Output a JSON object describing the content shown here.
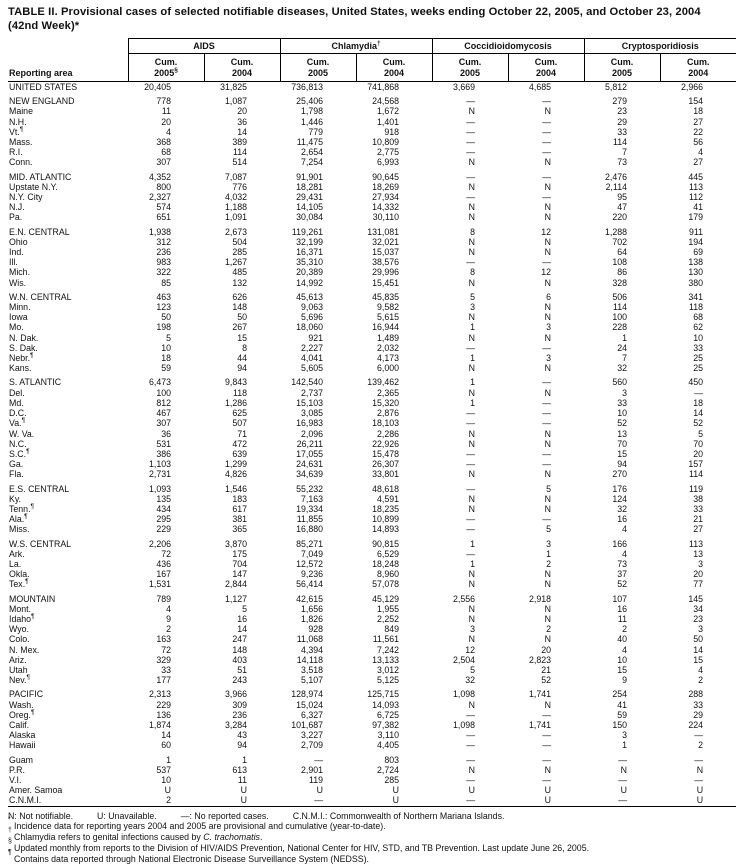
{
  "page": {
    "title_line1": "TABLE II. Provisional cases of selected notifiable diseases, United States, weeks ending October 22, 2005, and October 23, 2004",
    "title_line2": "(42nd Week)*"
  },
  "table": {
    "area_header": "Reporting area",
    "groups": [
      {
        "label": "AIDS",
        "sup": "",
        "sub": [
          {
            "line1": "Cum.",
            "line2": "2005",
            "sup": "§"
          },
          {
            "line1": "Cum.",
            "line2": "2004",
            "sup": ""
          }
        ]
      },
      {
        "label": "Chlamydia",
        "sup": "†",
        "sub": [
          {
            "line1": "Cum.",
            "line2": "2005",
            "sup": ""
          },
          {
            "line1": "Cum.",
            "line2": "2004",
            "sup": ""
          }
        ]
      },
      {
        "label": "Coccidioidomycosis",
        "sup": "",
        "sub": [
          {
            "line1": "Cum.",
            "line2": "2005",
            "sup": ""
          },
          {
            "line1": "Cum.",
            "line2": "2004",
            "sup": ""
          }
        ]
      },
      {
        "label": "Cryptosporidiosis",
        "sup": "",
        "sub": [
          {
            "line1": "Cum.",
            "line2": "2005",
            "sup": ""
          },
          {
            "line1": "Cum.",
            "line2": "2004",
            "sup": ""
          }
        ]
      }
    ],
    "rows": [
      {
        "area": "UNITED STATES",
        "sup": "",
        "gap": false,
        "values": [
          "20,405",
          "31,825",
          "736,813",
          "741,868",
          "3,669",
          "4,685",
          "5,812",
          "2,966"
        ]
      },
      {
        "area": "NEW ENGLAND",
        "sup": "",
        "gap": true,
        "values": [
          "778",
          "1,087",
          "25,406",
          "24,568",
          "—",
          "—",
          "279",
          "154"
        ]
      },
      {
        "area": "Maine",
        "sup": "",
        "gap": false,
        "values": [
          "11",
          "20",
          "1,798",
          "1,672",
          "N",
          "N",
          "23",
          "18"
        ]
      },
      {
        "area": "N.H.",
        "sup": "",
        "gap": false,
        "values": [
          "20",
          "36",
          "1,446",
          "1,401",
          "—",
          "—",
          "29",
          "27"
        ]
      },
      {
        "area": "Vt.",
        "sup": "¶",
        "gap": false,
        "values": [
          "4",
          "14",
          "779",
          "918",
          "—",
          "—",
          "33",
          "22"
        ]
      },
      {
        "area": "Mass.",
        "sup": "",
        "gap": false,
        "values": [
          "368",
          "389",
          "11,475",
          "10,809",
          "—",
          "—",
          "114",
          "56"
        ]
      },
      {
        "area": "R.I.",
        "sup": "",
        "gap": false,
        "values": [
          "68",
          "114",
          "2,654",
          "2,775",
          "—",
          "—",
          "7",
          "4"
        ]
      },
      {
        "area": "Conn.",
        "sup": "",
        "gap": false,
        "values": [
          "307",
          "514",
          "7,254",
          "6,993",
          "N",
          "N",
          "73",
          "27"
        ]
      },
      {
        "area": "MID. ATLANTIC",
        "sup": "",
        "gap": true,
        "values": [
          "4,352",
          "7,087",
          "91,901",
          "90,645",
          "—",
          "—",
          "2,476",
          "445"
        ]
      },
      {
        "area": "Upstate N.Y.",
        "sup": "",
        "gap": false,
        "values": [
          "800",
          "776",
          "18,281",
          "18,269",
          "N",
          "N",
          "2,114",
          "113"
        ]
      },
      {
        "area": "N.Y. City",
        "sup": "",
        "gap": false,
        "values": [
          "2,327",
          "4,032",
          "29,431",
          "27,934",
          "—",
          "—",
          "95",
          "112"
        ]
      },
      {
        "area": "N.J.",
        "sup": "",
        "gap": false,
        "values": [
          "574",
          "1,188",
          "14,105",
          "14,332",
          "N",
          "N",
          "47",
          "41"
        ]
      },
      {
        "area": "Pa.",
        "sup": "",
        "gap": false,
        "values": [
          "651",
          "1,091",
          "30,084",
          "30,110",
          "N",
          "N",
          "220",
          "179"
        ]
      },
      {
        "area": "E.N. CENTRAL",
        "sup": "",
        "gap": true,
        "values": [
          "1,938",
          "2,673",
          "119,261",
          "131,081",
          "8",
          "12",
          "1,288",
          "911"
        ]
      },
      {
        "area": "Ohio",
        "sup": "",
        "gap": false,
        "values": [
          "312",
          "504",
          "32,199",
          "32,021",
          "N",
          "N",
          "702",
          "194"
        ]
      },
      {
        "area": "Ind.",
        "sup": "",
        "gap": false,
        "values": [
          "236",
          "285",
          "16,371",
          "15,037",
          "N",
          "N",
          "64",
          "69"
        ]
      },
      {
        "area": "Ill.",
        "sup": "",
        "gap": false,
        "values": [
          "983",
          "1,267",
          "35,310",
          "38,576",
          "—",
          "—",
          "108",
          "138"
        ]
      },
      {
        "area": "Mich.",
        "sup": "",
        "gap": false,
        "values": [
          "322",
          "485",
          "20,389",
          "29,996",
          "8",
          "12",
          "86",
          "130"
        ]
      },
      {
        "area": "Wis.",
        "sup": "",
        "gap": false,
        "values": [
          "85",
          "132",
          "14,992",
          "15,451",
          "N",
          "N",
          "328",
          "380"
        ]
      },
      {
        "area": "W.N. CENTRAL",
        "sup": "",
        "gap": true,
        "values": [
          "463",
          "626",
          "45,613",
          "45,835",
          "5",
          "6",
          "506",
          "341"
        ]
      },
      {
        "area": "Minn.",
        "sup": "",
        "gap": false,
        "values": [
          "123",
          "148",
          "9,063",
          "9,582",
          "3",
          "N",
          "114",
          "118"
        ]
      },
      {
        "area": "Iowa",
        "sup": "",
        "gap": false,
        "values": [
          "50",
          "50",
          "5,696",
          "5,615",
          "N",
          "N",
          "100",
          "68"
        ]
      },
      {
        "area": "Mo.",
        "sup": "",
        "gap": false,
        "values": [
          "198",
          "267",
          "18,060",
          "16,944",
          "1",
          "3",
          "228",
          "62"
        ]
      },
      {
        "area": "N. Dak.",
        "sup": "",
        "gap": false,
        "values": [
          "5",
          "15",
          "921",
          "1,489",
          "N",
          "N",
          "1",
          "10"
        ]
      },
      {
        "area": "S. Dak.",
        "sup": "",
        "gap": false,
        "values": [
          "10",
          "8",
          "2,227",
          "2,032",
          "—",
          "—",
          "24",
          "33"
        ]
      },
      {
        "area": "Nebr.",
        "sup": "¶",
        "gap": false,
        "values": [
          "18",
          "44",
          "4,041",
          "4,173",
          "1",
          "3",
          "7",
          "25"
        ]
      },
      {
        "area": "Kans.",
        "sup": "",
        "gap": false,
        "values": [
          "59",
          "94",
          "5,605",
          "6,000",
          "N",
          "N",
          "32",
          "25"
        ]
      },
      {
        "area": "S. ATLANTIC",
        "sup": "",
        "gap": true,
        "values": [
          "6,473",
          "9,843",
          "142,540",
          "139,462",
          "1",
          "—",
          "560",
          "450"
        ]
      },
      {
        "area": "Del.",
        "sup": "",
        "gap": false,
        "values": [
          "100",
          "118",
          "2,737",
          "2,365",
          "N",
          "N",
          "3",
          "—"
        ]
      },
      {
        "area": "Md.",
        "sup": "",
        "gap": false,
        "values": [
          "812",
          "1,286",
          "15,103",
          "15,320",
          "1",
          "—",
          "33",
          "18"
        ]
      },
      {
        "area": "D.C.",
        "sup": "",
        "gap": false,
        "values": [
          "467",
          "625",
          "3,085",
          "2,876",
          "—",
          "—",
          "10",
          "14"
        ]
      },
      {
        "area": "Va.",
        "sup": "¶",
        "gap": false,
        "values": [
          "307",
          "507",
          "16,983",
          "18,103",
          "—",
          "—",
          "52",
          "52"
        ]
      },
      {
        "area": "W. Va.",
        "sup": "",
        "gap": false,
        "values": [
          "36",
          "71",
          "2,096",
          "2,286",
          "N",
          "N",
          "13",
          "5"
        ]
      },
      {
        "area": "N.C.",
        "sup": "",
        "gap": false,
        "values": [
          "531",
          "472",
          "26,211",
          "22,926",
          "N",
          "N",
          "70",
          "70"
        ]
      },
      {
        "area": "S.C.",
        "sup": "¶",
        "gap": false,
        "values": [
          "386",
          "639",
          "17,055",
          "15,478",
          "—",
          "—",
          "15",
          "20"
        ]
      },
      {
        "area": "Ga.",
        "sup": "",
        "gap": false,
        "values": [
          "1,103",
          "1,299",
          "24,631",
          "26,307",
          "—",
          "—",
          "94",
          "157"
        ]
      },
      {
        "area": "Fla.",
        "sup": "",
        "gap": false,
        "values": [
          "2,731",
          "4,826",
          "34,639",
          "33,801",
          "N",
          "N",
          "270",
          "114"
        ]
      },
      {
        "area": "E.S. CENTRAL",
        "sup": "",
        "gap": true,
        "values": [
          "1,093",
          "1,546",
          "55,232",
          "48,618",
          "—",
          "5",
          "176",
          "119"
        ]
      },
      {
        "area": "Ky.",
        "sup": "",
        "gap": false,
        "values": [
          "135",
          "183",
          "7,163",
          "4,591",
          "N",
          "N",
          "124",
          "38"
        ]
      },
      {
        "area": "Tenn.",
        "sup": "¶",
        "gap": false,
        "values": [
          "434",
          "617",
          "19,334",
          "18,235",
          "N",
          "N",
          "32",
          "33"
        ]
      },
      {
        "area": "Ala.",
        "sup": "¶",
        "gap": false,
        "values": [
          "295",
          "381",
          "11,855",
          "10,899",
          "—",
          "—",
          "16",
          "21"
        ]
      },
      {
        "area": "Miss.",
        "sup": "",
        "gap": false,
        "values": [
          "229",
          "365",
          "16,880",
          "14,893",
          "—",
          "5",
          "4",
          "27"
        ]
      },
      {
        "area": "W.S. CENTRAL",
        "sup": "",
        "gap": true,
        "values": [
          "2,206",
          "3,870",
          "85,271",
          "90,815",
          "1",
          "3",
          "166",
          "113"
        ]
      },
      {
        "area": "Ark.",
        "sup": "",
        "gap": false,
        "values": [
          "72",
          "175",
          "7,049",
          "6,529",
          "—",
          "1",
          "4",
          "13"
        ]
      },
      {
        "area": "La.",
        "sup": "",
        "gap": false,
        "values": [
          "436",
          "704",
          "12,572",
          "18,248",
          "1",
          "2",
          "73",
          "3"
        ]
      },
      {
        "area": "Okla.",
        "sup": "",
        "gap": false,
        "values": [
          "167",
          "147",
          "9,236",
          "8,960",
          "N",
          "N",
          "37",
          "20"
        ]
      },
      {
        "area": "Tex.",
        "sup": "¶",
        "gap": false,
        "values": [
          "1,531",
          "2,844",
          "56,414",
          "57,078",
          "N",
          "N",
          "52",
          "77"
        ]
      },
      {
        "area": "MOUNTAIN",
        "sup": "",
        "gap": true,
        "values": [
          "789",
          "1,127",
          "42,615",
          "45,129",
          "2,556",
          "2,918",
          "107",
          "145"
        ]
      },
      {
        "area": "Mont.",
        "sup": "",
        "gap": false,
        "values": [
          "4",
          "5",
          "1,656",
          "1,955",
          "N",
          "N",
          "16",
          "34"
        ]
      },
      {
        "area": "Idaho",
        "sup": "¶",
        "gap": false,
        "values": [
          "9",
          "16",
          "1,826",
          "2,252",
          "N",
          "N",
          "11",
          "23"
        ]
      },
      {
        "area": "Wyo.",
        "sup": "",
        "gap": false,
        "values": [
          "2",
          "14",
          "928",
          "849",
          "3",
          "2",
          "2",
          "3"
        ]
      },
      {
        "area": "Colo.",
        "sup": "",
        "gap": false,
        "values": [
          "163",
          "247",
          "11,068",
          "11,561",
          "N",
          "N",
          "40",
          "50"
        ]
      },
      {
        "area": "N. Mex.",
        "sup": "",
        "gap": false,
        "values": [
          "72",
          "148",
          "4,394",
          "7,242",
          "12",
          "20",
          "4",
          "14"
        ]
      },
      {
        "area": "Ariz.",
        "sup": "",
        "gap": false,
        "values": [
          "329",
          "403",
          "14,118",
          "13,133",
          "2,504",
          "2,823",
          "10",
          "15"
        ]
      },
      {
        "area": "Utah",
        "sup": "",
        "gap": false,
        "values": [
          "33",
          "51",
          "3,518",
          "3,012",
          "5",
          "21",
          "15",
          "4"
        ]
      },
      {
        "area": "Nev.",
        "sup": "¶",
        "gap": false,
        "values": [
          "177",
          "243",
          "5,107",
          "5,125",
          "32",
          "52",
          "9",
          "2"
        ]
      },
      {
        "area": "PACIFIC",
        "sup": "",
        "gap": true,
        "values": [
          "2,313",
          "3,966",
          "128,974",
          "125,715",
          "1,098",
          "1,741",
          "254",
          "288"
        ]
      },
      {
        "area": "Wash.",
        "sup": "",
        "gap": false,
        "values": [
          "229",
          "309",
          "15,024",
          "14,093",
          "N",
          "N",
          "41",
          "33"
        ]
      },
      {
        "area": "Oreg.",
        "sup": "¶",
        "gap": false,
        "values": [
          "136",
          "236",
          "6,327",
          "6,725",
          "—",
          "—",
          "59",
          "29"
        ]
      },
      {
        "area": "Calif.",
        "sup": "",
        "gap": false,
        "values": [
          "1,874",
          "3,284",
          "101,687",
          "97,382",
          "1,098",
          "1,741",
          "150",
          "224"
        ]
      },
      {
        "area": "Alaska",
        "sup": "",
        "gap": false,
        "values": [
          "14",
          "43",
          "3,227",
          "3,110",
          "—",
          "—",
          "3",
          "—"
        ]
      },
      {
        "area": "Hawaii",
        "sup": "",
        "gap": false,
        "values": [
          "60",
          "94",
          "2,709",
          "4,405",
          "—",
          "—",
          "1",
          "2"
        ]
      },
      {
        "area": "Guam",
        "sup": "",
        "gap": true,
        "values": [
          "1",
          "1",
          "—",
          "803",
          "—",
          "—",
          "—",
          "—"
        ]
      },
      {
        "area": "P.R.",
        "sup": "",
        "gap": false,
        "values": [
          "537",
          "613",
          "2,901",
          "2,724",
          "N",
          "N",
          "N",
          "N"
        ]
      },
      {
        "area": "V.I.",
        "sup": "",
        "gap": false,
        "values": [
          "10",
          "11",
          "119",
          "285",
          "—",
          "—",
          "—",
          "—"
        ]
      },
      {
        "area": "Amer. Samoa",
        "sup": "",
        "gap": false,
        "values": [
          "U",
          "U",
          "U",
          "U",
          "U",
          "U",
          "U",
          "U"
        ]
      },
      {
        "area": "C.N.M.I.",
        "sup": "",
        "gap": false,
        "values": [
          "2",
          "U",
          "—",
          "U",
          "—",
          "U",
          "—",
          "U"
        ]
      }
    ]
  },
  "footnotes": {
    "legend": [
      "N: Not notifiable.",
      "U: Unavailable.",
      "—: No reported cases.",
      "C.N.M.I.: Commonwealth of Northern Mariana Islands."
    ],
    "notes": [
      {
        "sup": "*",
        "pre": "Incidence data for reporting years 2004 and 2005 are provisional and cumulative (year-to-date).",
        "italic": "",
        "post": ""
      },
      {
        "sup": "†",
        "pre": "Chlamydia refers to genital infections caused by ",
        "italic": "C. trachomatis",
        "post": "."
      },
      {
        "sup": "§",
        "pre": "Updated monthly from reports to the Division of HIV/AIDS Prevention, National Center for HIV, STD, and TB Prevention. Last update June 26, 2005.",
        "italic": "",
        "post": ""
      },
      {
        "sup": "¶",
        "pre": "Contains data reported through National Electronic Disease Surveillance System (NEDSS).",
        "italic": "",
        "post": ""
      }
    ]
  }
}
